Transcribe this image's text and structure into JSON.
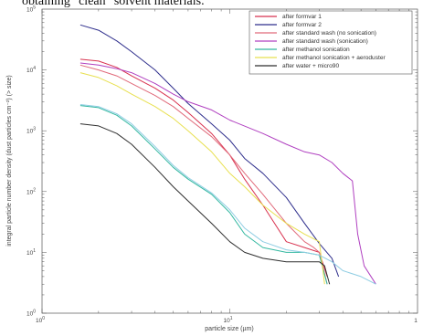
{
  "caption": "obtaining \"clean\" solvent materials.",
  "chart_data": {
    "type": "line",
    "xscale": "log",
    "yscale": "log",
    "xlim": [
      1,
      100
    ],
    "ylim": [
      1,
      100000
    ],
    "xlabel": "particle size (µm)",
    "ylabel": "integral particle number density (dust particles cm⁻²) (> size)",
    "x_ticks": [
      {
        "value": 1,
        "base": "10",
        "exp": "0"
      },
      {
        "value": 10,
        "base": "10",
        "exp": "1"
      },
      {
        "value": 100,
        "base": "1",
        "exp": ""
      }
    ],
    "y_ticks": [
      {
        "value": 1,
        "base": "10",
        "exp": "0"
      },
      {
        "value": 10,
        "base": "10",
        "exp": "1"
      },
      {
        "value": 100,
        "base": "10",
        "exp": "2"
      },
      {
        "value": 1000,
        "base": "10",
        "exp": "3"
      },
      {
        "value": 10000,
        "base": "10",
        "exp": "4"
      },
      {
        "value": 100000,
        "base": "10",
        "exp": "5"
      }
    ],
    "legend_position": "top-right",
    "series": [
      {
        "name": "after formvar 1",
        "color": "#d8324f",
        "x": [
          1.6,
          2.0,
          2.5,
          3.0,
          4.0,
          5.0,
          6.0,
          8.0,
          10.0,
          12.0,
          15.0,
          20.0,
          25.0,
          30.0,
          33.0
        ],
        "y": [
          15000,
          14000,
          11000,
          8000,
          5000,
          3200,
          2000,
          900,
          400,
          160,
          60,
          15,
          12,
          10,
          4
        ]
      },
      {
        "name": "after formvar 2",
        "color": "#2e2e8c",
        "x": [
          1.6,
          2.0,
          2.5,
          3.0,
          4.0,
          5.0,
          6.0,
          8.0,
          10.0,
          12.0,
          15.0,
          20.0,
          25.0,
          30.0,
          35.0,
          38.0
        ],
        "y": [
          55000,
          45000,
          30000,
          20000,
          10000,
          5000,
          2800,
          1300,
          700,
          350,
          200,
          80,
          30,
          14,
          8,
          4
        ]
      },
      {
        "name": "after standard wash (no sonication)",
        "color": "#e06a7a",
        "x": [
          1.6,
          2.0,
          2.5,
          3.0,
          4.0,
          5.0,
          6.0,
          8.0,
          10.0,
          12.0,
          15.0,
          20.0,
          25.0,
          28.0,
          30.0,
          33.0
        ],
        "y": [
          12000,
          10000,
          8000,
          6000,
          3800,
          2500,
          1600,
          800,
          400,
          200,
          90,
          30,
          15,
          12,
          10,
          3
        ]
      },
      {
        "name": "after standard wash (sonication)",
        "color": "#b040c0",
        "x": [
          1.6,
          2.0,
          2.5,
          3.0,
          4.0,
          5.0,
          6.0,
          8.0,
          10.0,
          15.0,
          20.0,
          25.0,
          30.0,
          35.0,
          40.0,
          45.0,
          48.0,
          52.0,
          60.0
        ],
        "y": [
          13000,
          12000,
          10500,
          9000,
          6000,
          4000,
          3000,
          2200,
          1500,
          900,
          600,
          450,
          400,
          300,
          200,
          150,
          20,
          6,
          3
        ]
      },
      {
        "name": "after methanol sonication",
        "color": "#33b8a0",
        "x": [
          1.6,
          2.0,
          2.5,
          3.0,
          4.0,
          5.0,
          6.0,
          8.0,
          10.0,
          12.0,
          15.0,
          20.0,
          25.0,
          30.0,
          33.0
        ],
        "y": [
          2600,
          2400,
          1800,
          1200,
          500,
          250,
          160,
          90,
          45,
          20,
          12,
          10,
          10,
          9,
          3
        ]
      },
      {
        "name": "after methanol sonication + aeroduster",
        "color": "#e8e050",
        "x": [
          1.6,
          2.0,
          2.5,
          3.0,
          4.0,
          5.0,
          6.0,
          8.0,
          10.0,
          12.0,
          15.0,
          20.0,
          25.0,
          30.0,
          32.0
        ],
        "y": [
          9000,
          7500,
          5500,
          4000,
          2500,
          1600,
          1000,
          450,
          200,
          120,
          60,
          30,
          20,
          15,
          3
        ]
      },
      {
        "name": "after water + micro90",
        "color": "#2f2f2f",
        "x": [
          1.6,
          2.0,
          2.5,
          3.0,
          4.0,
          5.0,
          6.0,
          8.0,
          10.0,
          12.0,
          15.0,
          20.0,
          25.0,
          30.0,
          32.0,
          34.0
        ],
        "y": [
          1300,
          1200,
          900,
          600,
          250,
          120,
          70,
          30,
          15,
          10,
          8,
          7,
          7,
          7,
          6,
          3
        ]
      },
      {
        "name": "",
        "color": "#8fcde3",
        "x": [
          1.6,
          2.0,
          2.5,
          3.0,
          4.0,
          5.0,
          6.0,
          8.0,
          10.0,
          12.0,
          15.0,
          20.0,
          25.0,
          30.0,
          35.0,
          40.0,
          50.0,
          60.0
        ],
        "y": [
          2700,
          2500,
          1900,
          1300,
          550,
          270,
          170,
          95,
          50,
          25,
          15,
          11,
          10,
          9,
          7,
          5,
          4,
          3
        ]
      }
    ]
  }
}
